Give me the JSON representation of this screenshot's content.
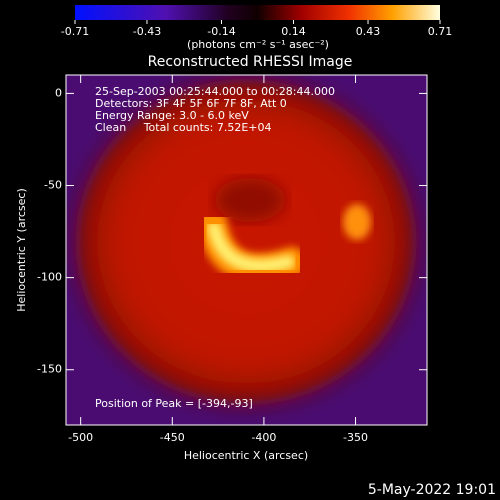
{
  "chart_data": {
    "type": "image",
    "title": "Reconstructed RHESSI Image",
    "colorbar_label": "(photons cm⁻² s⁻¹ asec⁻²)",
    "zlim": [
      -0.71,
      0.71
    ],
    "zticks": [
      -0.71,
      -0.43,
      -0.14,
      0.14,
      0.43,
      0.71
    ],
    "x_label": "Heliocentric X (arcsec)",
    "y_label": "Heliocentric Y (arcsec)",
    "xlim": [
      -508,
      -311
    ],
    "xticks": [
      -500,
      -450,
      -400,
      -350
    ],
    "ylim": [
      -180,
      10
    ],
    "yticks": [
      0,
      -50,
      -100,
      -150
    ],
    "annotations": [
      "25-Sep-2003 00:25:44.000 to 00:28:44.000",
      "Detectors: 3F 4F 5F 6F 7F 8F, Att 0",
      "Energy Range: 3.0 - 6.0 keV",
      "Clean     Total counts: 7.52E+04"
    ],
    "peak_label": "Position of Peak = [-394,-93]",
    "timestamp": "5-May-2022 19:01"
  }
}
